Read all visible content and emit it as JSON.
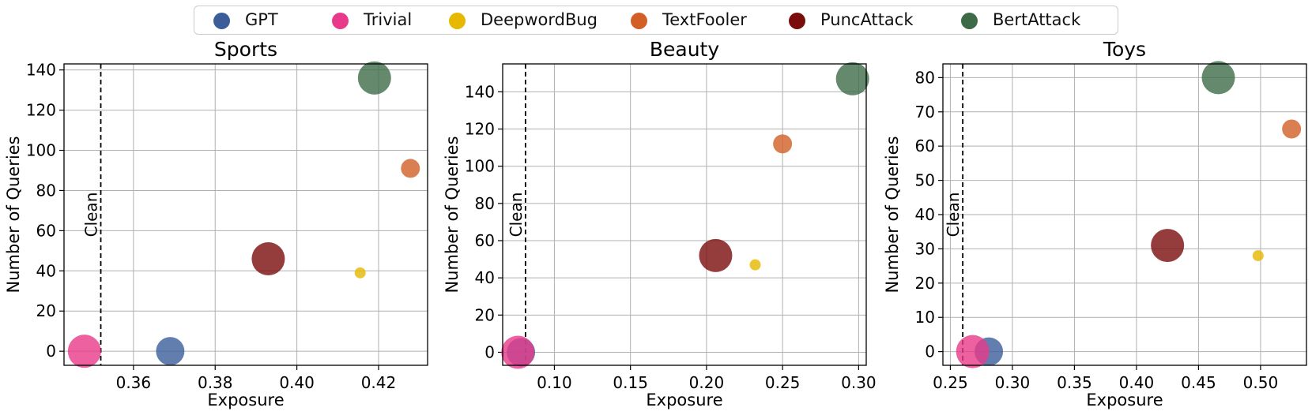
{
  "legend": {
    "items": [
      {
        "label": "GPT",
        "color": "#3b5e9a"
      },
      {
        "label": "Trivial",
        "color": "#e8398a"
      },
      {
        "label": "DeepwordBug",
        "color": "#e6b800"
      },
      {
        "label": "TextFooler",
        "color": "#d15f26"
      },
      {
        "label": "PuncAttack",
        "color": "#7a0c0c"
      },
      {
        "label": "BertAttack",
        "color": "#3d6b47"
      }
    ]
  },
  "chart_data": [
    {
      "type": "scatter",
      "title": "Sports",
      "xlabel": "Exposure",
      "ylabel": "Number of Queries",
      "xlim": [
        0.343,
        0.432
      ],
      "ylim": [
        -7,
        143
      ],
      "xticks": [
        "0.36",
        "0.38",
        "0.40",
        "0.42"
      ],
      "yticks": [
        "0",
        "20",
        "40",
        "60",
        "80",
        "100",
        "120",
        "140"
      ],
      "grid": true,
      "baseline": {
        "label": "Clean",
        "x": 0.352
      },
      "points": [
        {
          "series": "GPT",
          "x": 0.369,
          "y": 0,
          "size": "large"
        },
        {
          "series": "Trivial",
          "x": 0.348,
          "y": 0,
          "size": "xlarge"
        },
        {
          "series": "DeepwordBug",
          "x": 0.4155,
          "y": 39,
          "size": "small"
        },
        {
          "series": "TextFooler",
          "x": 0.4278,
          "y": 91,
          "size": "medium"
        },
        {
          "series": "PuncAttack",
          "x": 0.393,
          "y": 46,
          "size": "xlarge"
        },
        {
          "series": "BertAttack",
          "x": 0.419,
          "y": 136,
          "size": "xlarge"
        }
      ]
    },
    {
      "type": "scatter",
      "title": "Beauty",
      "xlabel": "Exposure",
      "ylabel": "Number of Queries",
      "xlim": [
        0.066,
        0.305
      ],
      "ylim": [
        -7,
        155
      ],
      "xticks": [
        "0.10",
        "0.15",
        "0.20",
        "0.25",
        "0.30"
      ],
      "yticks": [
        "0",
        "20",
        "40",
        "60",
        "80",
        "100",
        "120",
        "140"
      ],
      "grid": true,
      "baseline": {
        "label": "Clean",
        "x": 0.081
      },
      "points": [
        {
          "series": "GPT",
          "x": 0.078,
          "y": 0,
          "size": "large"
        },
        {
          "series": "Trivial",
          "x": 0.076,
          "y": 0,
          "size": "xlarge"
        },
        {
          "series": "DeepwordBug",
          "x": 0.232,
          "y": 47,
          "size": "small"
        },
        {
          "series": "TextFooler",
          "x": 0.25,
          "y": 112,
          "size": "medium"
        },
        {
          "series": "PuncAttack",
          "x": 0.206,
          "y": 52,
          "size": "xlarge"
        },
        {
          "series": "BertAttack",
          "x": 0.296,
          "y": 147,
          "size": "xlarge"
        }
      ]
    },
    {
      "type": "scatter",
      "title": "Toys",
      "xlabel": "Exposure",
      "ylabel": "Number of Queries",
      "xlim": [
        0.244,
        0.537
      ],
      "ylim": [
        -4,
        84
      ],
      "xticks": [
        "0.25",
        "0.30",
        "0.35",
        "0.40",
        "0.45",
        "0.50"
      ],
      "yticks": [
        "0",
        "10",
        "20",
        "30",
        "40",
        "50",
        "60",
        "70",
        "80"
      ],
      "grid": true,
      "baseline": {
        "label": "Clean",
        "x": 0.26
      },
      "points": [
        {
          "series": "GPT",
          "x": 0.281,
          "y": 0,
          "size": "large"
        },
        {
          "series": "Trivial",
          "x": 0.268,
          "y": 0,
          "size": "xlarge"
        },
        {
          "series": "DeepwordBug",
          "x": 0.498,
          "y": 28,
          "size": "small"
        },
        {
          "series": "TextFooler",
          "x": 0.525,
          "y": 65,
          "size": "medium"
        },
        {
          "series": "PuncAttack",
          "x": 0.425,
          "y": 31,
          "size": "xlarge"
        },
        {
          "series": "BertAttack",
          "x": 0.466,
          "y": 80,
          "size": "xlarge"
        }
      ]
    }
  ]
}
